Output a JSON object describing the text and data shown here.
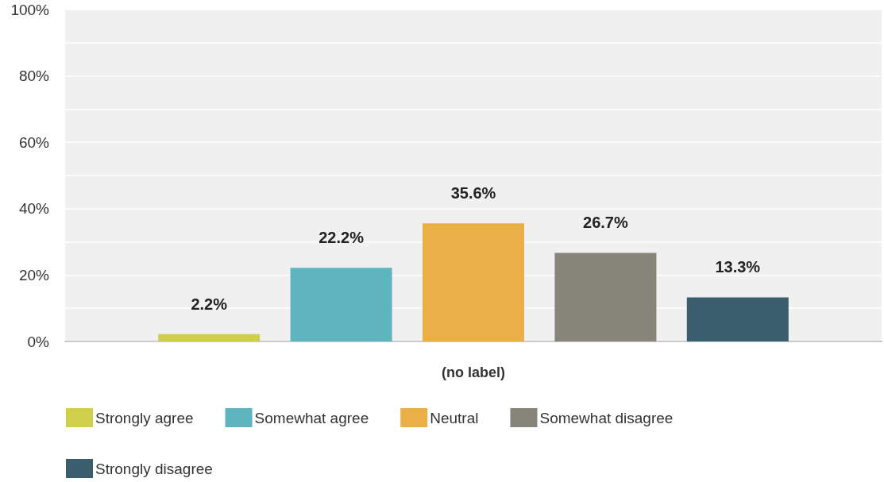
{
  "chart_data": {
    "type": "bar",
    "categories": [
      "(no label)"
    ],
    "series": [
      {
        "name": "Strongly agree",
        "color": "#d0cf4c",
        "values": [
          2.2
        ],
        "value_labels": [
          "2.2%"
        ]
      },
      {
        "name": "Somewhat agree",
        "color": "#5fb5bd",
        "values": [
          22.2
        ],
        "value_labels": [
          "22.2%"
        ]
      },
      {
        "name": "Neutral",
        "color": "#ebaf47",
        "values": [
          35.6
        ],
        "value_labels": [
          "35.6%"
        ]
      },
      {
        "name": "Somewhat disagree",
        "color": "#87857a",
        "values": [
          26.7
        ],
        "value_labels": [
          "26.7%"
        ]
      },
      {
        "name": "Strongly disagree",
        "color": "#3b5e6e",
        "values": [
          13.3
        ],
        "value_labels": [
          "13.3%"
        ]
      }
    ],
    "ylim": [
      0,
      100
    ],
    "yticks": [
      {
        "value": 0,
        "label": "0%"
      },
      {
        "value": 10,
        "label": null
      },
      {
        "value": 20,
        "label": "20%"
      },
      {
        "value": 30,
        "label": null
      },
      {
        "value": 40,
        "label": "40%"
      },
      {
        "value": 50,
        "label": null
      },
      {
        "value": 60,
        "label": "60%"
      },
      {
        "value": 70,
        "label": null
      },
      {
        "value": 80,
        "label": "80%"
      },
      {
        "value": 90,
        "label": null
      },
      {
        "value": 100,
        "label": "100%"
      }
    ],
    "grid": "y",
    "legend": "bottom left"
  }
}
